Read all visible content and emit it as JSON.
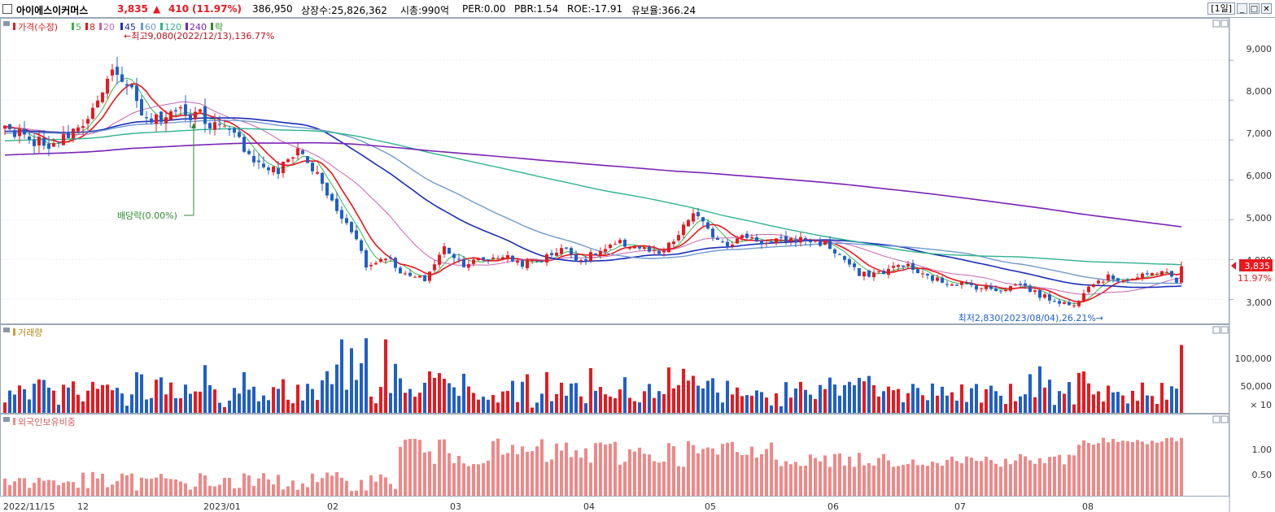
{
  "header": {
    "stock_name": "아이에스이커머스",
    "price": "3,835",
    "change_symbol": "▲",
    "change": "410",
    "change_pct": "(11.97%)",
    "volume": "386,950",
    "listed_shares": "상장수:25,826,362",
    "market_cap": "시총:990억",
    "per": "PER:0.00",
    "pbr": "PBR:1.54",
    "roe": "ROE:-17.91",
    "float_ratio": "유보율:366.24",
    "period": "[1일]",
    "btn_min": "_",
    "btn_max": "□",
    "btn_close": "✕"
  },
  "colors": {
    "up": "#e8191f",
    "down": "#1f5fc8",
    "ma5": "#3cb44b",
    "ma8": "#e6161c",
    "ma20": "#c764b4",
    "ma45": "#1a2fb8",
    "ma60": "#6e9ad0",
    "ma120": "#2fb38f",
    "ma240": "#7a22b6",
    "foreign": "#f08888"
  },
  "legend": {
    "price": "가격(수정)",
    "ma5": "5",
    "ma8": "8",
    "ma20": "20",
    "ma45": "45",
    "ma60": "60",
    "ma120": "120",
    "ma240": "240",
    "ex": "락"
  },
  "annotations": {
    "high": "←최고9,080(2022/12/13),136.77%",
    "low": "최저2,830(2023/08/04),26.21%→",
    "dividend": "배당락(0.00%)"
  },
  "price_panel": {
    "last_price_label": "3,835",
    "last_pct_label": "11.97%",
    "yticks": [
      "9,000",
      "8,000",
      "7,000",
      "6,000",
      "5,000",
      "4,000",
      "3,000"
    ]
  },
  "volume_panel": {
    "title": "거래량",
    "yticks": [
      "100,000",
      "50,000"
    ],
    "unit": "× 10"
  },
  "foreign_panel": {
    "title": "외국인보유비중",
    "yticks": [
      "1.00",
      "0.50"
    ]
  },
  "xaxis": [
    "2022/11/15",
    "12",
    "2023/01",
    "02",
    "03",
    "04",
    "05",
    "06",
    "07",
    "08"
  ],
  "chart_data": {
    "type": "candlestick",
    "period": "daily",
    "date_range": [
      "2022/11/15",
      "2023/08/29"
    ],
    "price_ylim": [
      2400,
      9900
    ],
    "volume_ylim": [
      0,
      130000
    ],
    "foreign_ylim": [
      0,
      1.5
    ],
    "high": {
      "value": 9080,
      "date": "2022/12/13",
      "pct": 136.77
    },
    "low": {
      "value": 2830,
      "date": "2023/08/04",
      "pct": 26.21
    },
    "last": {
      "price": 3835,
      "change": 410,
      "change_pct": 11.97,
      "volume": 386950
    },
    "close_anchors": [
      [
        0,
        7400
      ],
      [
        5,
        7000
      ],
      [
        10,
        6900
      ],
      [
        15,
        7250
      ],
      [
        19,
        7900
      ],
      [
        22,
        8900
      ],
      [
        25,
        8500
      ],
      [
        28,
        7600
      ],
      [
        32,
        7500
      ],
      [
        36,
        7700
      ],
      [
        40,
        7600
      ],
      [
        44,
        7300
      ],
      [
        48,
        7000
      ],
      [
        52,
        6400
      ],
      [
        56,
        6200
      ],
      [
        60,
        6800
      ],
      [
        64,
        6100
      ],
      [
        68,
        5200
      ],
      [
        72,
        4600
      ],
      [
        74,
        3800
      ],
      [
        78,
        4100
      ],
      [
        82,
        3600
      ],
      [
        86,
        3500
      ],
      [
        90,
        4300
      ],
      [
        94,
        3900
      ],
      [
        98,
        4000
      ],
      [
        102,
        4100
      ],
      [
        106,
        3900
      ],
      [
        110,
        4000
      ],
      [
        114,
        4300
      ],
      [
        118,
        4000
      ],
      [
        122,
        4200
      ],
      [
        126,
        4400
      ],
      [
        130,
        4300
      ],
      [
        134,
        4100
      ],
      [
        138,
        4600
      ],
      [
        141,
        5200
      ],
      [
        144,
        4700
      ],
      [
        148,
        4400
      ],
      [
        152,
        4600
      ],
      [
        156,
        4400
      ],
      [
        160,
        4500
      ],
      [
        164,
        4500
      ],
      [
        168,
        4400
      ],
      [
        172,
        4000
      ],
      [
        175,
        3600
      ],
      [
        180,
        3700
      ],
      [
        184,
        3900
      ],
      [
        188,
        3600
      ],
      [
        192,
        3450
      ],
      [
        196,
        3400
      ],
      [
        200,
        3300
      ],
      [
        204,
        3250
      ],
      [
        208,
        3400
      ],
      [
        212,
        3100
      ],
      [
        216,
        2950
      ],
      [
        219,
        2830
      ],
      [
        222,
        3400
      ],
      [
        226,
        3550
      ],
      [
        230,
        3500
      ],
      [
        234,
        3600
      ],
      [
        237,
        3750
      ],
      [
        240,
        3425
      ],
      [
        241,
        3835
      ]
    ],
    "moving_averages": [
      {
        "name": "5",
        "period": 5
      },
      {
        "name": "8",
        "period": 8
      },
      {
        "name": "20",
        "period": 20
      },
      {
        "name": "45",
        "period": 45
      },
      {
        "name": "60",
        "period": 60
      },
      {
        "name": "120",
        "period": 120
      },
      {
        "name": "240",
        "period": 240
      }
    ]
  }
}
